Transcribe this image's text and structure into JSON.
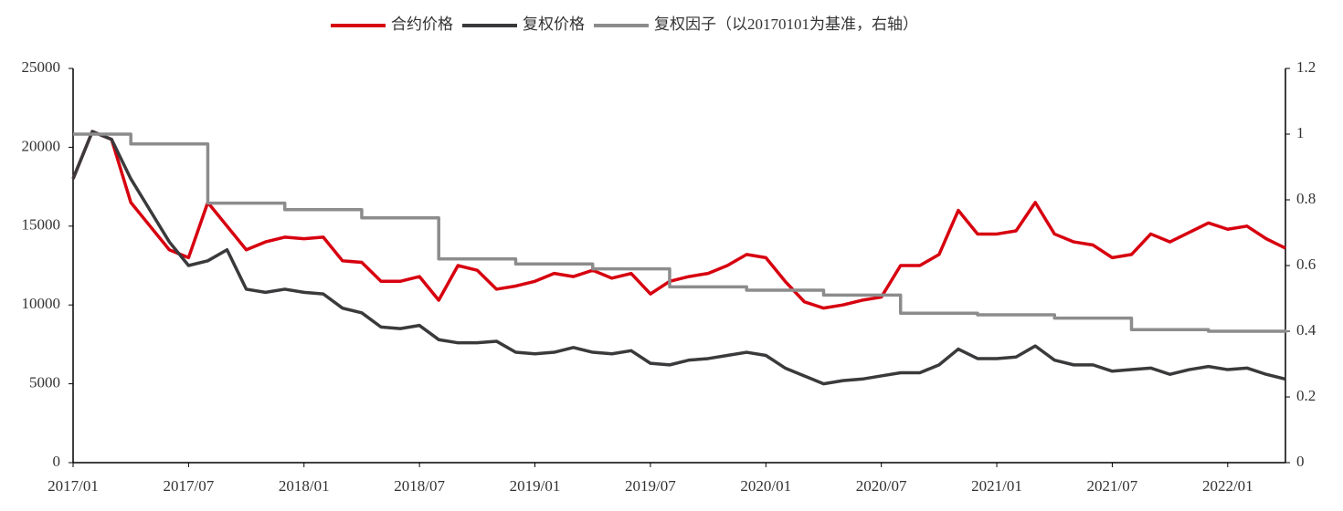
{
  "chart_data": {
    "type": "line",
    "x": [
      "2017/01",
      "2017/02",
      "2017/03",
      "2017/04",
      "2017/05",
      "2017/06",
      "2017/07",
      "2017/08",
      "2017/09",
      "2017/10",
      "2017/11",
      "2017/12",
      "2018/01",
      "2018/02",
      "2018/03",
      "2018/04",
      "2018/05",
      "2018/06",
      "2018/07",
      "2018/08",
      "2018/09",
      "2018/10",
      "2018/11",
      "2018/12",
      "2019/01",
      "2019/02",
      "2019/03",
      "2019/04",
      "2019/05",
      "2019/06",
      "2019/07",
      "2019/08",
      "2019/09",
      "2019/10",
      "2019/11",
      "2019/12",
      "2020/01",
      "2020/02",
      "2020/03",
      "2020/04",
      "2020/05",
      "2020/06",
      "2020/07",
      "2020/08",
      "2020/09",
      "2020/10",
      "2020/11",
      "2020/12",
      "2021/01",
      "2021/02",
      "2021/03",
      "2021/04",
      "2021/05",
      "2021/06",
      "2021/07",
      "2021/08",
      "2021/09",
      "2021/10",
      "2021/11",
      "2021/12",
      "2022/01",
      "2022/02",
      "2022/03",
      "2022/04"
    ],
    "xlim": [
      "2017/01",
      "2022/04"
    ],
    "xticks": [
      "2017/01",
      "2017/07",
      "2018/01",
      "2018/07",
      "2019/01",
      "2019/07",
      "2020/01",
      "2020/07",
      "2021/01",
      "2021/07",
      "2022/01"
    ],
    "ylim": [
      0,
      25000
    ],
    "yticks": [
      0,
      5000,
      10000,
      15000,
      20000,
      25000
    ],
    "y2lim": [
      0,
      1.2
    ],
    "y2ticks": [
      0,
      0.2,
      0.4,
      0.6,
      0.8,
      1,
      1.2
    ],
    "series": [
      {
        "name": "合约价格",
        "color": "#d7000f",
        "values": [
          18000,
          21000,
          20500,
          16500,
          15000,
          13500,
          13000,
          16500,
          15000,
          13500,
          14000,
          14300,
          14200,
          14300,
          12800,
          12700,
          11500,
          11500,
          11800,
          10300,
          12500,
          12200,
          11000,
          11200,
          11500,
          12000,
          11800,
          12200,
          11700,
          12000,
          10700,
          11500,
          11800,
          12000,
          12500,
          13200,
          13000,
          11500,
          10200,
          9800,
          10000,
          10300,
          10500,
          12500,
          12500,
          13200,
          16000,
          14500,
          14500,
          14700,
          16500,
          14500,
          14000,
          13800,
          13000,
          13200,
          14500,
          14000,
          14600,
          15200,
          14800,
          15000,
          14200,
          13600
        ]
      },
      {
        "name": "复权价格",
        "color": "#3a3a3c",
        "values": [
          18000,
          21000,
          20500,
          18000,
          16000,
          14000,
          12500,
          12800,
          13500,
          11000,
          10800,
          11000,
          10800,
          10700,
          9800,
          9500,
          8600,
          8500,
          8700,
          7800,
          7600,
          7600,
          7700,
          7000,
          6900,
          7000,
          7300,
          7000,
          6900,
          7100,
          6300,
          6200,
          6500,
          6600,
          6800,
          7000,
          6800,
          6000,
          5500,
          5000,
          5200,
          5300,
          5500,
          5700,
          5700,
          6200,
          7200,
          6600,
          6600,
          6700,
          7400,
          6500,
          6200,
          6200,
          5800,
          5900,
          6000,
          5600,
          5900,
          6100,
          5900,
          6000,
          5600,
          5300
        ]
      },
      {
        "name": "复权因子（以20170101为基准，右轴）",
        "color": "#8c8c8c",
        "axis": "y2",
        "step": "post",
        "values": [
          1,
          1,
          1,
          0.97,
          0.97,
          0.97,
          0.97,
          0.79,
          0.79,
          0.79,
          0.79,
          0.77,
          0.77,
          0.77,
          0.77,
          0.745,
          0.745,
          0.745,
          0.745,
          0.62,
          0.62,
          0.62,
          0.62,
          0.605,
          0.605,
          0.605,
          0.605,
          0.59,
          0.59,
          0.59,
          0.59,
          0.535,
          0.535,
          0.535,
          0.535,
          0.525,
          0.525,
          0.525,
          0.525,
          0.51,
          0.51,
          0.51,
          0.51,
          0.455,
          0.455,
          0.455,
          0.455,
          0.45,
          0.45,
          0.45,
          0.45,
          0.44,
          0.44,
          0.44,
          0.44,
          0.405,
          0.405,
          0.405,
          0.405,
          0.4,
          0.4,
          0.4,
          0.4,
          0.395
        ]
      }
    ]
  }
}
